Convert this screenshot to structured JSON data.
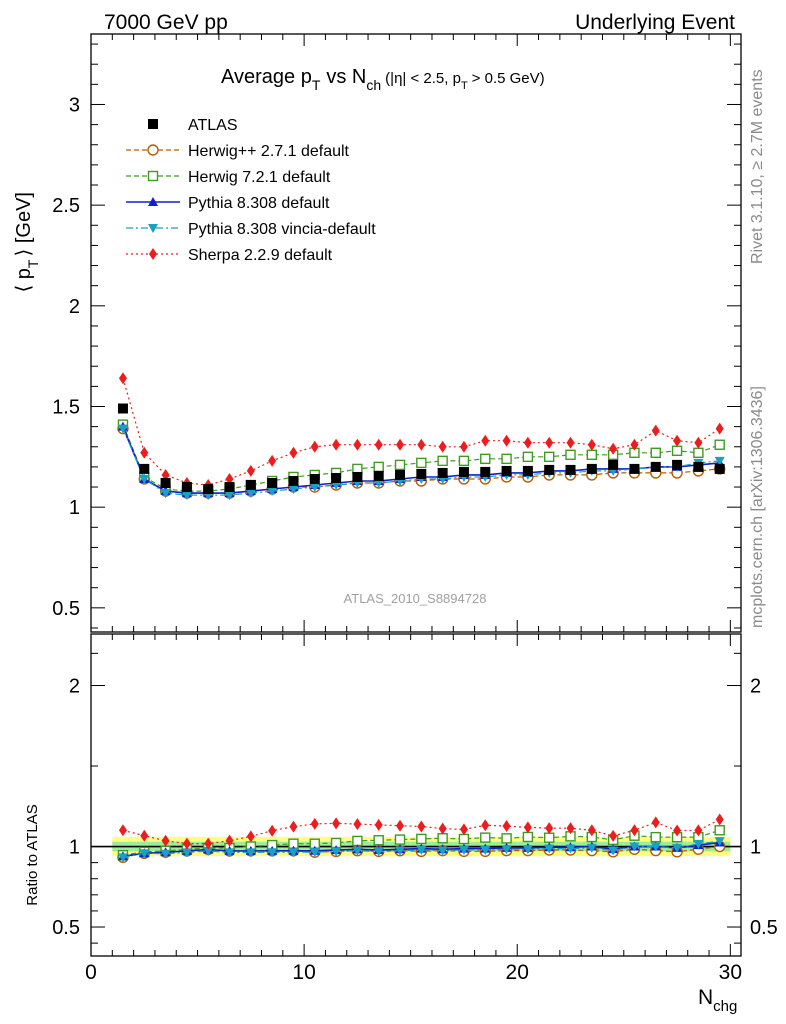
{
  "header": {
    "left": "7000 GeV pp",
    "right": "Underlying Event"
  },
  "side_text": {
    "rivet": "Rivet 3.1.10, ≥ 2.7M events",
    "mcplots": "mcplots.cern.ch [arXiv:1306.3436]"
  },
  "plot_title": {
    "main": "Average p",
    "main_sub": "T",
    "vs": "vs N",
    "vs_sub": "ch",
    "cuts_a": "(|η| < 2.5, p",
    "cuts_sub": "T",
    "cuts_b": "> 0.5 GeV)"
  },
  "analysis_id": "ATLAS_2010_S8894728",
  "y_axis": {
    "left": "⟨ p",
    "sub": "T",
    "right": "⟩ [GeV]"
  },
  "ratio_axis_label": "Ratio to ATLAS",
  "x_axis": {
    "main": "N",
    "sub": "chg"
  },
  "chart_data": {
    "type": "line",
    "xlim": [
      0,
      30.5
    ],
    "main_ylim": [
      0.38,
      3.35
    ],
    "ratio_ylim": [
      0.32,
      2.32
    ],
    "x_ticks": [
      "0",
      "10",
      "20",
      "30"
    ],
    "main_y_ticks": [
      "0.5",
      "1",
      "1.5",
      "2",
      "2.5",
      "3"
    ],
    "ratio_y_ticks": [
      "0.5",
      "1",
      "2"
    ],
    "x": [
      1.5,
      2.5,
      3.5,
      4.5,
      5.5,
      6.5,
      7.5,
      8.5,
      9.5,
      10.5,
      11.5,
      12.5,
      13.5,
      14.5,
      15.5,
      16.5,
      17.5,
      18.5,
      19.5,
      20.5,
      21.5,
      22.5,
      23.5,
      24.5,
      25.5,
      26.5,
      27.5,
      28.5,
      29.5
    ],
    "ratio_band_outer": 0.06,
    "ratio_band_inner": 0.03,
    "legend_position": "top-left",
    "series": [
      {
        "name": "ATLAS",
        "role": "data",
        "color": "#000000",
        "marker": "square-filled",
        "line": "none",
        "values": [
          1.49,
          1.19,
          1.12,
          1.1,
          1.09,
          1.1,
          1.11,
          1.12,
          1.13,
          1.14,
          1.145,
          1.15,
          1.155,
          1.16,
          1.165,
          1.17,
          1.175,
          1.175,
          1.18,
          1.18,
          1.185,
          1.185,
          1.19,
          1.21,
          1.19,
          1.2,
          1.21,
          1.2,
          1.19
        ]
      },
      {
        "name": "Herwig++ 2.7.1 default",
        "color": "#b85c00",
        "marker": "circle-open",
        "line": "dashed",
        "values": [
          1.39,
          1.14,
          1.08,
          1.07,
          1.07,
          1.07,
          1.08,
          1.09,
          1.1,
          1.1,
          1.11,
          1.12,
          1.12,
          1.13,
          1.13,
          1.14,
          1.14,
          1.14,
          1.15,
          1.15,
          1.16,
          1.16,
          1.16,
          1.17,
          1.17,
          1.17,
          1.17,
          1.18,
          1.19
        ]
      },
      {
        "name": "Herwig 7.2.1 default",
        "color": "#3f9a24",
        "marker": "square-open",
        "line": "dashed",
        "values": [
          1.41,
          1.15,
          1.09,
          1.08,
          1.08,
          1.09,
          1.11,
          1.13,
          1.15,
          1.16,
          1.17,
          1.19,
          1.2,
          1.21,
          1.22,
          1.23,
          1.23,
          1.24,
          1.24,
          1.25,
          1.25,
          1.26,
          1.26,
          1.26,
          1.27,
          1.27,
          1.28,
          1.27,
          1.31
        ]
      },
      {
        "name": "Pythia 8.308 default",
        "color": "#1020c8",
        "marker": "triangle-up-filled",
        "line": "solid",
        "values": [
          1.4,
          1.14,
          1.08,
          1.07,
          1.07,
          1.07,
          1.08,
          1.09,
          1.1,
          1.11,
          1.12,
          1.13,
          1.13,
          1.14,
          1.15,
          1.15,
          1.16,
          1.16,
          1.17,
          1.17,
          1.18,
          1.18,
          1.19,
          1.19,
          1.19,
          1.2,
          1.2,
          1.21,
          1.22
        ]
      },
      {
        "name": "Pythia 8.308 vincia-default",
        "color": "#1aa0c0",
        "marker": "triangle-down-filled",
        "line": "dashdot",
        "values": [
          1.39,
          1.14,
          1.07,
          1.06,
          1.06,
          1.06,
          1.07,
          1.08,
          1.09,
          1.1,
          1.11,
          1.12,
          1.12,
          1.13,
          1.14,
          1.14,
          1.15,
          1.15,
          1.16,
          1.16,
          1.17,
          1.17,
          1.18,
          1.18,
          1.19,
          1.2,
          1.2,
          1.22,
          1.23
        ]
      },
      {
        "name": "Sherpa 2.2.9 default",
        "color": "#ee1c1c",
        "marker": "diamond-filled",
        "line": "dotted",
        "values": [
          1.64,
          1.27,
          1.16,
          1.12,
          1.11,
          1.14,
          1.18,
          1.23,
          1.27,
          1.3,
          1.31,
          1.31,
          1.31,
          1.31,
          1.31,
          1.3,
          1.3,
          1.33,
          1.33,
          1.32,
          1.32,
          1.32,
          1.31,
          1.29,
          1.31,
          1.38,
          1.33,
          1.32,
          1.39
        ]
      }
    ]
  }
}
